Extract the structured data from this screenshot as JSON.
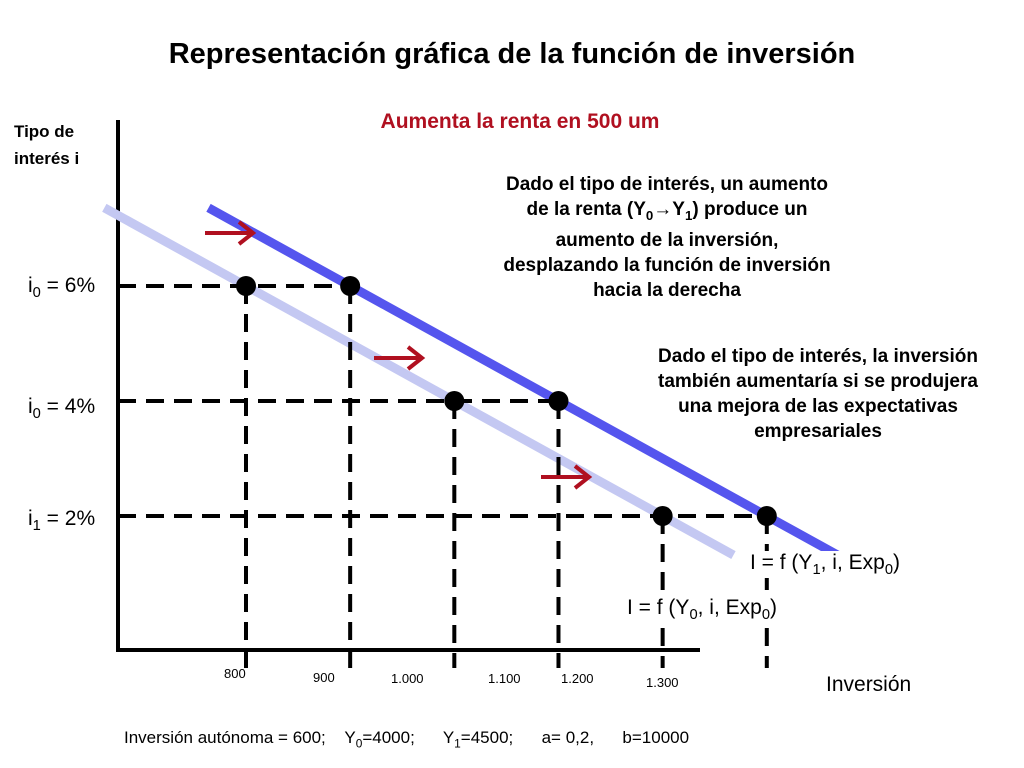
{
  "title": "Representación gráfica de la función de inversión",
  "subtitle": "Aumenta la renta en 500 um",
  "ylabel_line1": "Tipo de",
  "ylabel_line2": "interés i",
  "xlabel": "Inversión",
  "note1": {
    "l1": "Dado el tipo de interés, un aumento",
    "l2a": "de la renta (Y",
    "l2sub0": "0",
    "l2arrow": "→",
    "l2b": "Y",
    "l2sub1": "1",
    "l2c": ") produce un",
    "l3": "aumento de la inversión,",
    "l4": "desplazando la función de inversión",
    "l5": "hacia la derecha"
  },
  "note2": {
    "l1": "Dado el tipo de interés, la inversión",
    "l2": "también aumentaría si se produjera",
    "l3": "una mejora de las expectativas",
    "l4": "empresariales"
  },
  "yticks": [
    {
      "main": "i",
      "sub": "0",
      "rest": " = 6%",
      "value": 6
    },
    {
      "main": "i",
      "sub": "0",
      "rest": " = 4%",
      "value": 4
    },
    {
      "main": "i",
      "sub": "1",
      "rest": " = 2%",
      "value": 2
    }
  ],
  "xticks": [
    {
      "label": "800",
      "value": 800
    },
    {
      "label": "900",
      "value": 900
    },
    {
      "label": "1.000",
      "value": 1000
    },
    {
      "label": "1.100",
      "value": 1100
    },
    {
      "label": "1.200",
      "value": 1200
    },
    {
      "label": "1.300",
      "value": 1300
    }
  ],
  "curve_labels": {
    "y1": {
      "a": "I = f (Y",
      "s": "1",
      "b": ", i, Exp",
      "s2": "0",
      "c": ")"
    },
    "y0": {
      "a": "I = f (Y",
      "s": "0",
      "b": ", i, Exp",
      "s2": "0",
      "c": ")"
    }
  },
  "footer": {
    "a": "Inversión autónoma = 600;    Y",
    "s0": "0",
    "b": "=4000;      Y",
    "s1": "1",
    "c": "=4500;      a= 0,2,      b=10000"
  },
  "colors": {
    "title": "#000000",
    "subtitle": "#b01020",
    "curve_y1": "#5555ee",
    "curve_y0": "#c4c8f2",
    "arrow": "#b01020",
    "dashes": "#000000"
  },
  "chart_data": {
    "type": "line",
    "xlabel": "Inversión",
    "ylabel": "Tipo de interés i",
    "series": [
      {
        "name": "I = f (Y0, i, Exp0)",
        "points": [
          {
            "x": 800,
            "y": 6
          },
          {
            "x": 1000,
            "y": 4
          },
          {
            "x": 1200,
            "y": 2
          }
        ]
      },
      {
        "name": "I = f (Y1, i, Exp0)",
        "points": [
          {
            "x": 900,
            "y": 6
          },
          {
            "x": 1100,
            "y": 4
          },
          {
            "x": 1300,
            "y": 2
          }
        ]
      }
    ],
    "grid": false,
    "legend": "none"
  }
}
